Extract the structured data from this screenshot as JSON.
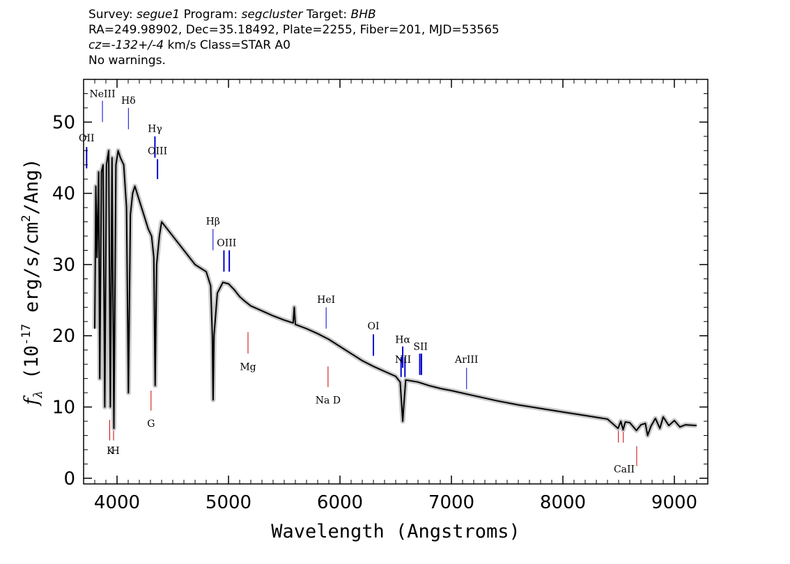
{
  "header": {
    "line1": {
      "survey_key": "Survey:",
      "survey": "segue1",
      "program_key": "Program:",
      "program": "segcluster",
      "target_key": "Target:",
      "target": "BHB"
    },
    "line2": "RA=249.98902, Dec=35.18492, Plate=2255, Fiber=201, MJD=53565",
    "line3": {
      "cz_key": "cz=",
      "cz": "-132+/-4",
      "rest": "km/s Class=STAR A0"
    },
    "line4": "No warnings."
  },
  "chart_data": {
    "type": "line",
    "xlabel": "Wavelength (Angstroms)",
    "ylabel": "f_λ (10^-17 erg/s/cm^2/Ang)",
    "xlim": [
      3700,
      9300
    ],
    "ylim": [
      -0.8,
      56
    ],
    "x_ticks": [
      4000,
      5000,
      6000,
      7000,
      8000,
      9000
    ],
    "y_ticks": [
      0,
      10,
      20,
      30,
      40,
      50
    ],
    "x_tick_labels": [
      "4000",
      "5000",
      "6000",
      "7000",
      "8000",
      "9000"
    ],
    "y_tick_labels": [
      "0",
      "10",
      "20",
      "30",
      "40",
      "50"
    ],
    "series": [
      {
        "color": "#000000",
        "points": [
          [
            3800,
            21
          ],
          [
            3810,
            41
          ],
          [
            3820,
            31
          ],
          [
            3835,
            43
          ],
          [
            3845,
            14
          ],
          [
            3860,
            43
          ],
          [
            3875,
            44
          ],
          [
            3890,
            10
          ],
          [
            3905,
            44
          ],
          [
            3925,
            46
          ],
          [
            3940,
            10
          ],
          [
            3955,
            45
          ],
          [
            3972,
            7
          ],
          [
            3990,
            44
          ],
          [
            4010,
            46
          ],
          [
            4030,
            45
          ],
          [
            4060,
            44
          ],
          [
            4085,
            38
          ],
          [
            4102,
            12
          ],
          [
            4120,
            37
          ],
          [
            4140,
            40
          ],
          [
            4160,
            41
          ],
          [
            4180,
            40
          ],
          [
            4200,
            39
          ],
          [
            4240,
            37
          ],
          [
            4280,
            35
          ],
          [
            4310,
            34
          ],
          [
            4330,
            31
          ],
          [
            4342,
            13
          ],
          [
            4355,
            30
          ],
          [
            4380,
            34
          ],
          [
            4400,
            36
          ],
          [
            4450,
            35
          ],
          [
            4500,
            34
          ],
          [
            4550,
            33
          ],
          [
            4600,
            32
          ],
          [
            4650,
            31
          ],
          [
            4700,
            30
          ],
          [
            4750,
            29.5
          ],
          [
            4800,
            29
          ],
          [
            4840,
            27
          ],
          [
            4855,
            20
          ],
          [
            4862,
            11
          ],
          [
            4870,
            20
          ],
          [
            4900,
            26
          ],
          [
            4950,
            27.5
          ],
          [
            5000,
            27.3
          ],
          [
            5050,
            26.5
          ],
          [
            5100,
            25.5
          ],
          [
            5150,
            24.8
          ],
          [
            5200,
            24.2
          ],
          [
            5300,
            23.5
          ],
          [
            5400,
            22.8
          ],
          [
            5500,
            22.2
          ],
          [
            5580,
            21.8
          ],
          [
            5590,
            24
          ],
          [
            5600,
            21.6
          ],
          [
            5700,
            21.0
          ],
          [
            5800,
            20.3
          ],
          [
            5900,
            19.5
          ],
          [
            6000,
            18.5
          ],
          [
            6100,
            17.5
          ],
          [
            6200,
            16.5
          ],
          [
            6300,
            15.7
          ],
          [
            6400,
            15.0
          ],
          [
            6500,
            14.3
          ],
          [
            6540,
            13.5
          ],
          [
            6555,
            10
          ],
          [
            6563,
            8
          ],
          [
            6572,
            10
          ],
          [
            6590,
            13.8
          ],
          [
            6700,
            13.5
          ],
          [
            6800,
            13.0
          ],
          [
            6900,
            12.6
          ],
          [
            7000,
            12.3
          ],
          [
            7200,
            11.6
          ],
          [
            7400,
            10.9
          ],
          [
            7600,
            10.3
          ],
          [
            7800,
            9.8
          ],
          [
            8000,
            9.3
          ],
          [
            8200,
            8.8
          ],
          [
            8400,
            8.3
          ],
          [
            8495,
            7.0
          ],
          [
            8520,
            8.0
          ],
          [
            8540,
            6.8
          ],
          [
            8560,
            7.9
          ],
          [
            8600,
            7.8
          ],
          [
            8660,
            6.7
          ],
          [
            8700,
            7.5
          ],
          [
            8740,
            7.7
          ],
          [
            8760,
            6.0
          ],
          [
            8790,
            7.3
          ],
          [
            8830,
            8.4
          ],
          [
            8870,
            7.0
          ],
          [
            8900,
            8.6
          ],
          [
            8950,
            7.4
          ],
          [
            9000,
            8.1
          ],
          [
            9050,
            7.2
          ],
          [
            9100,
            7.5
          ],
          [
            9200,
            7.4
          ]
        ]
      }
    ],
    "emission_lines": [
      {
        "label": "NeIII",
        "wl": [
          3869
        ],
        "color": "#0000cc",
        "y1": 50.0,
        "y2": 53.0,
        "label_y": 53.5,
        "width": 1
      },
      {
        "label": "Hδ",
        "wl": [
          4102
        ],
        "color": "#0000cc",
        "y1": 49.0,
        "y2": 52.0,
        "label_y": 52.6,
        "width": 1
      },
      {
        "label": "Hγ",
        "wl": [
          4340
        ],
        "color": "#0000cc",
        "y1": 45.0,
        "y2": 48.0,
        "label_y": 48.6,
        "width": 2
      },
      {
        "label": "OIII",
        "wl": [
          4363
        ],
        "color": "#0000cc",
        "y1": 42.0,
        "y2": 44.8,
        "label_y": 45.5,
        "width": 2
      },
      {
        "label": "OII",
        "wl": [
          3727
        ],
        "color": "#0000cc",
        "y1": 43.5,
        "y2": 46.5,
        "label_y": 47.3,
        "width": 2
      },
      {
        "label": "Hβ",
        "wl": [
          4861
        ],
        "color": "#0000cc",
        "y1": 32.0,
        "y2": 35.0,
        "label_y": 35.6,
        "width": 1
      },
      {
        "label": "OIII",
        "wl": [
          4959,
          5007
        ],
        "color": "#0000cc",
        "y1": 29.0,
        "y2": 32.0,
        "label_y": 32.6,
        "width": 2
      },
      {
        "label": "HeI",
        "wl": [
          5876
        ],
        "color": "#0000cc",
        "y1": 21.0,
        "y2": 24.0,
        "label_y": 24.6,
        "width": 1
      },
      {
        "label": "OI",
        "wl": [
          6300
        ],
        "color": "#0000cc",
        "y1": 17.2,
        "y2": 20.2,
        "label_y": 20.9,
        "width": 2
      },
      {
        "label": "NII",
        "wl": [
          6548,
          6583
        ],
        "color": "#0000cc",
        "y1": 14.2,
        "y2": 17.0,
        "label_y": 16.2,
        "width": 2
      },
      {
        "label": "Hα",
        "wl": [
          6563
        ],
        "color": "#0000cc",
        "y1": 15.5,
        "y2": 18.5,
        "label_y": 19.0,
        "width": 2
      },
      {
        "label": "SII",
        "wl": [
          6716,
          6731
        ],
        "color": "#0000cc",
        "y1": 14.5,
        "y2": 17.5,
        "label_y": 18.0,
        "width": 2
      },
      {
        "label": "ArIII",
        "wl": [
          7136
        ],
        "color": "#0000cc",
        "y1": 12.5,
        "y2": 15.5,
        "label_y": 16.2,
        "width": 1
      }
    ],
    "absorption_lines": [
      {
        "label": "K",
        "label_wl": 3940,
        "wl": [
          3934
        ],
        "color": "#cc0000",
        "y1": 5.3,
        "y2": 8.2,
        "label_y": 3.4
      },
      {
        "label": "H",
        "label_wl": 3985,
        "wl": [
          3969
        ],
        "color": "#cc0000",
        "y1": 5.3,
        "y2": 8.2,
        "label_y": 3.4
      },
      {
        "label": "G",
        "wl": [
          4305
        ],
        "color": "#cc0000",
        "y1": 9.5,
        "y2": 12.3,
        "label_y": 7.2
      },
      {
        "label": "Mg",
        "wl": [
          5175
        ],
        "color": "#cc0000",
        "y1": 17.5,
        "y2": 20.5,
        "label_y": 15.2
      },
      {
        "label": "Na D",
        "wl": [
          5893
        ],
        "color": "#cc0000",
        "y1": 12.8,
        "y2": 15.7,
        "label_y": 10.5
      },
      {
        "label": "CaII",
        "label_wl": 8550,
        "wl": [
          8498,
          8542,
          8662
        ],
        "color": "#cc0000",
        "y1": [
          5.0,
          5.0,
          1.7
        ],
        "y2": [
          8.0,
          8.0,
          4.5
        ],
        "label_y": 0.8
      }
    ]
  }
}
